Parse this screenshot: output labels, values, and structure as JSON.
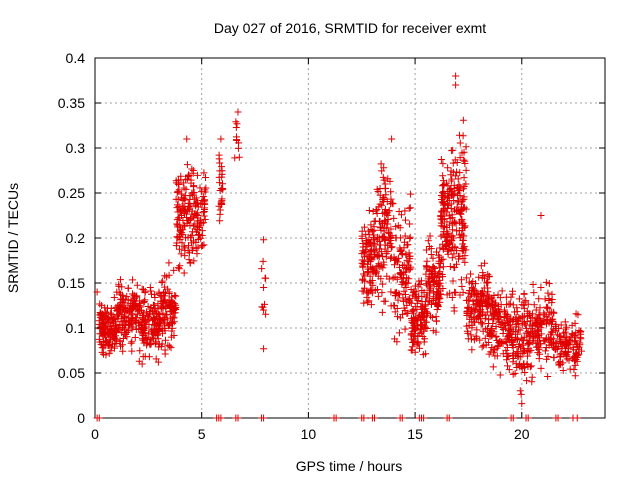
{
  "chart_data": {
    "type": "scatter",
    "title": "Day 027 of 2016, SRMTID for receiver exmt",
    "xlabel": "GPS time / hours",
    "ylabel": "SRMTID / TECUs",
    "xlim": [
      0,
      23.9
    ],
    "ylim": [
      0,
      0.4
    ],
    "x_ticks": [
      0,
      5,
      10,
      15,
      20
    ],
    "x_tick_labels": [
      "0",
      "5",
      "10",
      "15",
      "20"
    ],
    "y_ticks": [
      0,
      0.05,
      0.1,
      0.15,
      0.2,
      0.25,
      0.3,
      0.35,
      0.4
    ],
    "y_tick_labels": [
      "0",
      "0.05",
      "0.1",
      "0.15",
      "0.2",
      "0.25",
      "0.3",
      "0.35",
      "0.4"
    ],
    "grid": true,
    "marker": "+",
    "color": "#e00000",
    "series": [
      {
        "name": "SRMTID",
        "clusters": [
          {
            "x": [
              0.2,
              1.0
            ],
            "y": [
              0.06,
              0.14
            ],
            "count": 140
          },
          {
            "x": [
              1.0,
              2.0
            ],
            "y": [
              0.06,
              0.17
            ],
            "count": 140
          },
          {
            "x": [
              2.0,
              3.0
            ],
            "y": [
              0.05,
              0.16
            ],
            "count": 140
          },
          {
            "x": [
              3.0,
              3.8
            ],
            "y": [
              0.06,
              0.18
            ],
            "count": 110
          },
          {
            "x": [
              3.8,
              4.5
            ],
            "y": [
              0.14,
              0.3
            ],
            "count": 110
          },
          {
            "x": [
              4.5,
              5.2
            ],
            "y": [
              0.16,
              0.29
            ],
            "count": 90
          },
          {
            "x": [
              5.8,
              6.0
            ],
            "y": [
              0.2,
              0.31
            ],
            "count": 25
          },
          {
            "x": [
              6.5,
              6.8
            ],
            "y": [
              0.27,
              0.34
            ],
            "count": 10
          },
          {
            "x": [
              7.8,
              8.0
            ],
            "y": [
              0.07,
              0.2
            ],
            "count": 8
          },
          {
            "x": [
              12.5,
              13.2
            ],
            "y": [
              0.1,
              0.25
            ],
            "count": 110
          },
          {
            "x": [
              13.2,
              14.0
            ],
            "y": [
              0.1,
              0.31
            ],
            "count": 120
          },
          {
            "x": [
              14.0,
              14.8
            ],
            "y": [
              0.06,
              0.26
            ],
            "count": 110
          },
          {
            "x": [
              14.8,
              15.5
            ],
            "y": [
              0.05,
              0.17
            ],
            "count": 110
          },
          {
            "x": [
              15.5,
              16.2
            ],
            "y": [
              0.07,
              0.22
            ],
            "count": 110
          },
          {
            "x": [
              16.2,
              16.8
            ],
            "y": [
              0.12,
              0.32
            ],
            "count": 120
          },
          {
            "x": [
              16.8,
              17.4
            ],
            "y": [
              0.1,
              0.37
            ],
            "count": 110
          },
          {
            "x": [
              17.4,
              18.5
            ],
            "y": [
              0.06,
              0.19
            ],
            "count": 150
          },
          {
            "x": [
              18.5,
              19.5
            ],
            "y": [
              0.04,
              0.16
            ],
            "count": 130
          },
          {
            "x": [
              19.5,
              20.5
            ],
            "y": [
              0.02,
              0.16
            ],
            "count": 130
          },
          {
            "x": [
              20.5,
              21.5
            ],
            "y": [
              0.04,
              0.16
            ],
            "count": 120
          },
          {
            "x": [
              21.5,
              22.8
            ],
            "y": [
              0.04,
              0.12
            ],
            "count": 120
          }
        ],
        "zero_points_x": [
          0.1,
          0.2,
          5.7,
          5.8,
          5.9,
          6.6,
          6.7,
          7.8,
          7.9,
          11.2,
          11.3,
          12.5,
          12.6,
          13.0,
          13.1,
          14.3,
          14.4,
          15.2,
          15.3,
          15.4,
          16.5,
          16.6,
          19.5,
          19.6,
          20.2,
          20.3,
          21.6,
          21.7,
          22.4,
          22.6
        ]
      }
    ],
    "highlights": [
      {
        "x": 16.9,
        "y": 0.38
      },
      {
        "x": 16.9,
        "y": 0.37
      },
      {
        "x": 6.7,
        "y": 0.34
      },
      {
        "x": 5.9,
        "y": 0.31
      },
      {
        "x": 13.9,
        "y": 0.31
      },
      {
        "x": 4.3,
        "y": 0.31
      },
      {
        "x": 7.9,
        "y": 0.198
      },
      {
        "x": 7.9,
        "y": 0.145
      },
      {
        "x": 7.9,
        "y": 0.12
      },
      {
        "x": 7.9,
        "y": 0.077
      },
      {
        "x": 20.0,
        "y": 0.016
      },
      {
        "x": 0.1,
        "y": 0.14
      },
      {
        "x": 20.9,
        "y": 0.225
      }
    ]
  }
}
